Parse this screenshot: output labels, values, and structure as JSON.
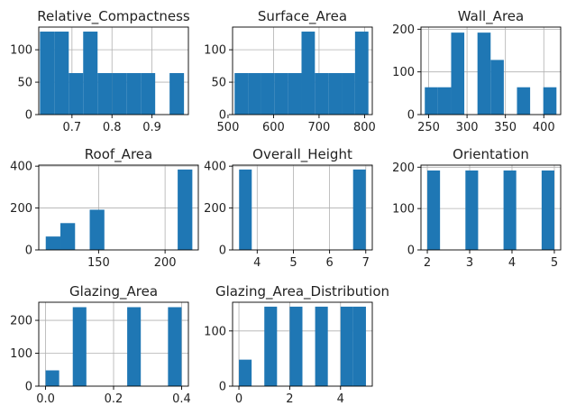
{
  "chart_data": [
    {
      "type": "bar",
      "title": "Relative_Compactness",
      "xlim": [
        0.617,
        0.991
      ],
      "ylim": [
        0,
        135
      ],
      "xticks": [
        0.7,
        0.8,
        0.9
      ],
      "xtick_labels": [
        "0.7",
        "0.8",
        "0.9"
      ],
      "yticks": [
        0,
        50,
        100
      ],
      "ytick_labels": [
        "0",
        "50",
        "100"
      ],
      "bins": [
        {
          "x0": 0.62,
          "x1": 0.656,
          "value": 128
        },
        {
          "x0": 0.656,
          "x1": 0.692,
          "value": 128
        },
        {
          "x0": 0.692,
          "x1": 0.728,
          "value": 64
        },
        {
          "x0": 0.728,
          "x1": 0.764,
          "value": 128
        },
        {
          "x0": 0.764,
          "x1": 0.8,
          "value": 64
        },
        {
          "x0": 0.8,
          "x1": 0.836,
          "value": 64
        },
        {
          "x0": 0.836,
          "x1": 0.872,
          "value": 64
        },
        {
          "x0": 0.872,
          "x1": 0.908,
          "value": 64
        },
        {
          "x0": 0.908,
          "x1": 0.944,
          "value": 0
        },
        {
          "x0": 0.944,
          "x1": 0.98,
          "value": 64
        }
      ],
      "grid": true
    },
    {
      "type": "bar",
      "title": "Surface_Area",
      "xlim": [
        510,
        817
      ],
      "ylim": [
        0,
        135
      ],
      "xticks": [
        500,
        600,
        700,
        800
      ],
      "xtick_labels": [
        "500",
        "600",
        "700",
        "800"
      ],
      "yticks": [
        0,
        50,
        100
      ],
      "ytick_labels": [
        "0",
        "50",
        "100"
      ],
      "bins": [
        {
          "x0": 514.5,
          "x1": 543.9,
          "value": 64
        },
        {
          "x0": 543.9,
          "x1": 573.3,
          "value": 64
        },
        {
          "x0": 573.3,
          "x1": 602.7,
          "value": 64
        },
        {
          "x0": 602.7,
          "x1": 632.1,
          "value": 64
        },
        {
          "x0": 632.1,
          "x1": 661.5,
          "value": 64
        },
        {
          "x0": 661.5,
          "x1": 690.9,
          "value": 128
        },
        {
          "x0": 690.9,
          "x1": 720.3,
          "value": 64
        },
        {
          "x0": 720.3,
          "x1": 749.7,
          "value": 64
        },
        {
          "x0": 749.7,
          "x1": 779.1,
          "value": 64
        },
        {
          "x0": 779.1,
          "x1": 808.5,
          "value": 128
        }
      ],
      "grid": true
    },
    {
      "type": "bar",
      "title": "Wall_Area",
      "xlim": [
        240,
        422
      ],
      "ylim": [
        0,
        205
      ],
      "xticks": [
        250,
        300,
        350,
        400
      ],
      "xtick_labels": [
        "250",
        "300",
        "350",
        "400"
      ],
      "yticks": [
        0,
        100,
        200
      ],
      "ytick_labels": [
        "0",
        "100",
        "200"
      ],
      "bins": [
        {
          "x0": 245,
          "x1": 262.15,
          "value": 64
        },
        {
          "x0": 262.15,
          "x1": 279.3,
          "value": 64
        },
        {
          "x0": 279.3,
          "x1": 296.45,
          "value": 192
        },
        {
          "x0": 296.45,
          "x1": 313.6,
          "value": 0
        },
        {
          "x0": 313.6,
          "x1": 330.75,
          "value": 192
        },
        {
          "x0": 330.75,
          "x1": 347.9,
          "value": 128
        },
        {
          "x0": 347.9,
          "x1": 365.05,
          "value": 0
        },
        {
          "x0": 365.05,
          "x1": 382.2,
          "value": 64
        },
        {
          "x0": 382.2,
          "x1": 399.35,
          "value": 0
        },
        {
          "x0": 399.35,
          "x1": 416.5,
          "value": 64
        }
      ],
      "grid": true
    },
    {
      "type": "bar",
      "title": "Roof_Area",
      "xlim": [
        105,
        225
      ],
      "ylim": [
        0,
        405
      ],
      "xticks": [
        150,
        200
      ],
      "xtick_labels": [
        "150",
        "200"
      ],
      "yticks": [
        0,
        200,
        400
      ],
      "ytick_labels": [
        "0",
        "200",
        "400"
      ],
      "bins": [
        {
          "x0": 110.25,
          "x1": 121.275,
          "value": 64
        },
        {
          "x0": 121.275,
          "x1": 132.3,
          "value": 128
        },
        {
          "x0": 132.3,
          "x1": 143.325,
          "value": 0
        },
        {
          "x0": 143.325,
          "x1": 154.35,
          "value": 192
        },
        {
          "x0": 154.35,
          "x1": 165.375,
          "value": 0
        },
        {
          "x0": 165.375,
          "x1": 176.4,
          "value": 0
        },
        {
          "x0": 176.4,
          "x1": 187.425,
          "value": 0
        },
        {
          "x0": 187.425,
          "x1": 198.45,
          "value": 0
        },
        {
          "x0": 198.45,
          "x1": 209.475,
          "value": 0
        },
        {
          "x0": 209.475,
          "x1": 220.5,
          "value": 384
        }
      ],
      "grid": true
    },
    {
      "type": "bar",
      "title": "Overall_Height",
      "xlim": [
        3.32,
        7.18
      ],
      "ylim": [
        0,
        405
      ],
      "xticks": [
        4,
        5,
        6,
        7
      ],
      "xtick_labels": [
        "4",
        "5",
        "6",
        "7"
      ],
      "yticks": [
        0,
        200,
        400
      ],
      "ytick_labels": [
        "0",
        "200",
        "400"
      ],
      "bins": [
        {
          "x0": 3.5,
          "x1": 3.85,
          "value": 384
        },
        {
          "x0": 3.85,
          "x1": 4.2,
          "value": 0
        },
        {
          "x0": 4.2,
          "x1": 4.55,
          "value": 0
        },
        {
          "x0": 4.55,
          "x1": 4.9,
          "value": 0
        },
        {
          "x0": 4.9,
          "x1": 5.25,
          "value": 0
        },
        {
          "x0": 5.25,
          "x1": 5.6,
          "value": 0
        },
        {
          "x0": 5.6,
          "x1": 5.95,
          "value": 0
        },
        {
          "x0": 5.95,
          "x1": 6.3,
          "value": 0
        },
        {
          "x0": 6.3,
          "x1": 6.65,
          "value": 0
        },
        {
          "x0": 6.65,
          "x1": 7.0,
          "value": 384
        }
      ],
      "grid": true
    },
    {
      "type": "bar",
      "title": "Orientation",
      "xlim": [
        1.85,
        5.15
      ],
      "ylim": [
        0,
        205
      ],
      "xticks": [
        2,
        3,
        4,
        5
      ],
      "xtick_labels": [
        "2",
        "3",
        "4",
        "5"
      ],
      "yticks": [
        0,
        100,
        200
      ],
      "ytick_labels": [
        "0",
        "100",
        "200"
      ],
      "bins": [
        {
          "x0": 2.0,
          "x1": 2.3,
          "value": 192
        },
        {
          "x0": 2.3,
          "x1": 2.6,
          "value": 0
        },
        {
          "x0": 2.6,
          "x1": 2.9,
          "value": 0
        },
        {
          "x0": 2.9,
          "x1": 3.2,
          "value": 192
        },
        {
          "x0": 3.2,
          "x1": 3.5,
          "value": 0
        },
        {
          "x0": 3.5,
          "x1": 3.8,
          "value": 0
        },
        {
          "x0": 3.8,
          "x1": 4.1,
          "value": 192
        },
        {
          "x0": 4.1,
          "x1": 4.4,
          "value": 0
        },
        {
          "x0": 4.4,
          "x1": 4.7,
          "value": 0
        },
        {
          "x0": 4.7,
          "x1": 5.0,
          "value": 192
        }
      ],
      "grid": true
    },
    {
      "type": "bar",
      "title": "Glazing_Area",
      "xlim": [
        -0.02,
        0.42
      ],
      "ylim": [
        0,
        255
      ],
      "xticks": [
        0.0,
        0.2,
        0.4
      ],
      "xtick_labels": [
        "0.0",
        "0.2",
        "0.4"
      ],
      "yticks": [
        0,
        100,
        200
      ],
      "ytick_labels": [
        "0",
        "100",
        "200"
      ],
      "bins": [
        {
          "x0": 0.0,
          "x1": 0.04,
          "value": 48
        },
        {
          "x0": 0.04,
          "x1": 0.08,
          "value": 0
        },
        {
          "x0": 0.08,
          "x1": 0.12,
          "value": 240
        },
        {
          "x0": 0.12,
          "x1": 0.16,
          "value": 0
        },
        {
          "x0": 0.16,
          "x1": 0.2,
          "value": 0
        },
        {
          "x0": 0.2,
          "x1": 0.24,
          "value": 0
        },
        {
          "x0": 0.24,
          "x1": 0.28,
          "value": 240
        },
        {
          "x0": 0.28,
          "x1": 0.32,
          "value": 0
        },
        {
          "x0": 0.32,
          "x1": 0.36,
          "value": 0
        },
        {
          "x0": 0.36,
          "x1": 0.4,
          "value": 240
        }
      ],
      "grid": true
    },
    {
      "type": "bar",
      "title": "Glazing_Area_Distribution",
      "xlim": [
        -0.25,
        5.25
      ],
      "ylim": [
        0,
        152
      ],
      "xticks": [
        0,
        2,
        4
      ],
      "xtick_labels": [
        "0",
        "2",
        "4"
      ],
      "yticks": [
        0,
        100
      ],
      "ytick_labels": [
        "0",
        "100"
      ],
      "bins": [
        {
          "x0": 0.0,
          "x1": 0.5,
          "value": 48
        },
        {
          "x0": 0.5,
          "x1": 1.0,
          "value": 0
        },
        {
          "x0": 1.0,
          "x1": 1.5,
          "value": 144
        },
        {
          "x0": 1.5,
          "x1": 2.0,
          "value": 0
        },
        {
          "x0": 2.0,
          "x1": 2.5,
          "value": 144
        },
        {
          "x0": 2.5,
          "x1": 3.0,
          "value": 0
        },
        {
          "x0": 3.0,
          "x1": 3.5,
          "value": 144
        },
        {
          "x0": 3.5,
          "x1": 4.0,
          "value": 0
        },
        {
          "x0": 4.0,
          "x1": 4.5,
          "value": 144
        },
        {
          "x0": 4.5,
          "x1": 5.0,
          "value": 144
        }
      ],
      "grid": true
    }
  ]
}
